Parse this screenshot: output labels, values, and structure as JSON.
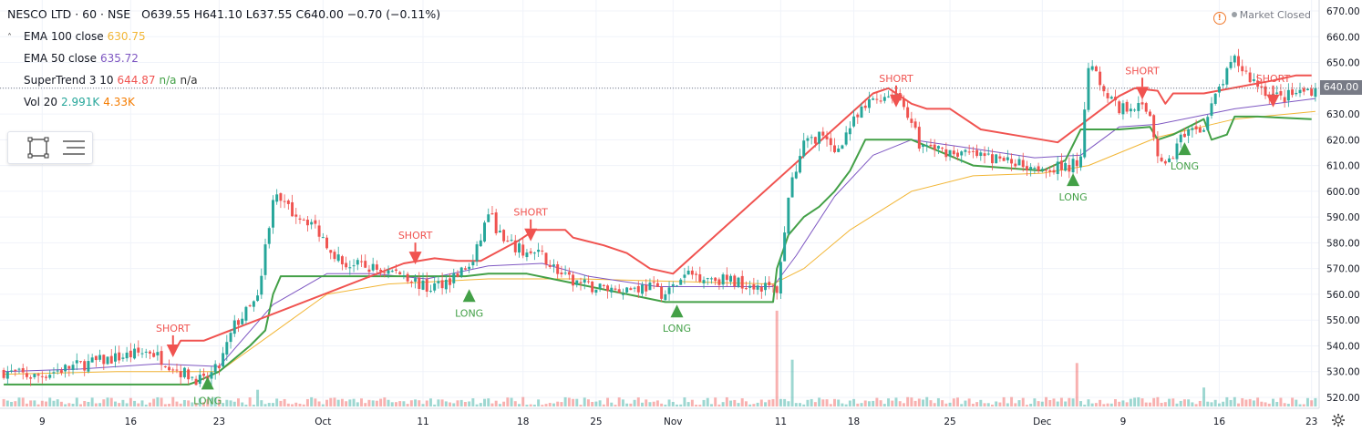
{
  "header": {
    "title": "NESCO LTD · 60 · NSE",
    "ohlc": "O639.55  H641.10  L637.55  C640.00  −0.70 (−0.11%)",
    "indicators": [
      {
        "name": "EMA 100 close",
        "value": "630.75",
        "color": "#f2b636"
      },
      {
        "name": "EMA 50 close",
        "value": "635.72",
        "color": "#7e57c2"
      },
      {
        "name": "SuperTrend 3 10",
        "value": "644.87",
        "value2": "n/a",
        "value3": "n/a",
        "color": "#f05350"
      },
      {
        "name": "Vol 20",
        "value": "2.991K",
        "value2": "4.33K",
        "color": "#26a69a"
      }
    ]
  },
  "status": {
    "market": "Market Closed",
    "alert_icon": "!"
  },
  "last_price": "640.00",
  "toolbar_icons": [
    "select-rectangle-icon",
    "object-tree-icon"
  ],
  "colors": {
    "up": "#26a69a",
    "down": "#ef5350",
    "long": "#43a047",
    "short": "#f05350",
    "ema100": "#f2b636",
    "ema50": "#7e57c2",
    "grid": "#f0f3fa"
  },
  "chart_data": {
    "type": "candlestick",
    "symbol": "NESCO LTD",
    "interval": "60",
    "exchange": "NSE",
    "y_ticks": [
      "670.00",
      "660.00",
      "650.00",
      "640.00",
      "630.00",
      "620.00",
      "610.00",
      "600.00",
      "590.00",
      "580.00",
      "570.00",
      "560.00",
      "550.00",
      "540.00",
      "530.00",
      "520.00"
    ],
    "ylim": [
      517,
      673
    ],
    "x_ticks": [
      {
        "label": "9",
        "bar": 10
      },
      {
        "label": "16",
        "bar": 33
      },
      {
        "label": "23",
        "bar": 56
      },
      {
        "label": "Oct",
        "bar": 83
      },
      {
        "label": "11",
        "bar": 109
      },
      {
        "label": "18",
        "bar": 135
      },
      {
        "label": "25",
        "bar": 154
      },
      {
        "label": "Nov",
        "bar": 174
      },
      {
        "label": "11",
        "bar": 202
      },
      {
        "label": "18",
        "bar": 221
      },
      {
        "label": "25",
        "bar": 246
      },
      {
        "label": "Dec",
        "bar": 270
      },
      {
        "label": "9",
        "bar": 291
      },
      {
        "label": "16",
        "bar": 316
      },
      {
        "label": "23",
        "bar": 340
      }
    ],
    "num_bars": 342,
    "price_path": [
      [
        0,
        530
      ],
      [
        8,
        528
      ],
      [
        18,
        532
      ],
      [
        28,
        535
      ],
      [
        38,
        538
      ],
      [
        46,
        530
      ],
      [
        52,
        526
      ],
      [
        56,
        532
      ],
      [
        60,
        548
      ],
      [
        66,
        558
      ],
      [
        70,
        598
      ],
      [
        74,
        593
      ],
      [
        80,
        588
      ],
      [
        84,
        580
      ],
      [
        88,
        572
      ],
      [
        96,
        570
      ],
      [
        104,
        568
      ],
      [
        110,
        562
      ],
      [
        116,
        566
      ],
      [
        122,
        572
      ],
      [
        126,
        592
      ],
      [
        130,
        580
      ],
      [
        136,
        576
      ],
      [
        140,
        575
      ],
      [
        146,
        566
      ],
      [
        152,
        563
      ],
      [
        160,
        562
      ],
      [
        168,
        563
      ],
      [
        172,
        560
      ],
      [
        178,
        568
      ],
      [
        186,
        566
      ],
      [
        194,
        564
      ],
      [
        201,
        562
      ],
      [
        204,
        598
      ],
      [
        208,
        618
      ],
      [
        212,
        622
      ],
      [
        216,
        615
      ],
      [
        220,
        625
      ],
      [
        226,
        636
      ],
      [
        232,
        638
      ],
      [
        236,
        628
      ],
      [
        238,
        618
      ],
      [
        244,
        616
      ],
      [
        252,
        614
      ],
      [
        260,
        612
      ],
      [
        268,
        610
      ],
      [
        276,
        609
      ],
      [
        280,
        612
      ],
      [
        282,
        650
      ],
      [
        286,
        640
      ],
      [
        290,
        632
      ],
      [
        294,
        634
      ],
      [
        298,
        630
      ],
      [
        300,
        615
      ],
      [
        302,
        610
      ],
      [
        306,
        620
      ],
      [
        312,
        625
      ],
      [
        316,
        640
      ],
      [
        320,
        651
      ],
      [
        324,
        644
      ],
      [
        328,
        639
      ],
      [
        332,
        636
      ],
      [
        336,
        638
      ],
      [
        341,
        640
      ]
    ],
    "ema50_path": [
      [
        0,
        530
      ],
      [
        20,
        531
      ],
      [
        40,
        533
      ],
      [
        56,
        532
      ],
      [
        70,
        556
      ],
      [
        84,
        568
      ],
      [
        96,
        568
      ],
      [
        110,
        566
      ],
      [
        126,
        571
      ],
      [
        140,
        572
      ],
      [
        152,
        567
      ],
      [
        170,
        563
      ],
      [
        200,
        563
      ],
      [
        206,
        575
      ],
      [
        216,
        598
      ],
      [
        226,
        614
      ],
      [
        236,
        620
      ],
      [
        250,
        617
      ],
      [
        268,
        613
      ],
      [
        280,
        614
      ],
      [
        290,
        625
      ],
      [
        300,
        626
      ],
      [
        320,
        632
      ],
      [
        341,
        636
      ]
    ],
    "ema100_path": [
      [
        0,
        529
      ],
      [
        30,
        530
      ],
      [
        56,
        530
      ],
      [
        70,
        545
      ],
      [
        84,
        560
      ],
      [
        100,
        564
      ],
      [
        126,
        566
      ],
      [
        150,
        566
      ],
      [
        200,
        564
      ],
      [
        208,
        570
      ],
      [
        220,
        585
      ],
      [
        236,
        600
      ],
      [
        252,
        606
      ],
      [
        270,
        607
      ],
      [
        282,
        610
      ],
      [
        300,
        621
      ],
      [
        320,
        628
      ],
      [
        341,
        631
      ]
    ],
    "supertrend_long": [
      [
        0,
        525
      ],
      [
        20,
        525
      ],
      [
        48,
        525
      ],
      [
        50,
        526
      ],
      [
        56,
        530
      ],
      [
        64,
        540
      ],
      [
        68,
        546
      ],
      [
        70,
        560
      ],
      [
        72,
        567
      ],
      [
        80,
        567
      ],
      [
        102,
        567
      ],
      [
        110,
        567
      ],
      [
        120,
        567
      ],
      [
        126,
        568
      ],
      [
        136,
        568
      ],
      [
        172,
        557
      ],
      [
        200,
        557
      ],
      [
        201,
        570
      ],
      [
        204,
        583
      ],
      [
        208,
        590
      ],
      [
        212,
        594
      ],
      [
        216,
        600
      ],
      [
        220,
        608
      ],
      [
        224,
        620
      ],
      [
        236,
        620
      ],
      [
        252,
        610
      ],
      [
        270,
        608
      ],
      [
        276,
        612
      ],
      [
        280,
        624
      ],
      [
        290,
        624
      ],
      [
        298,
        625
      ],
      [
        300,
        620
      ],
      [
        304,
        622
      ],
      [
        308,
        625
      ],
      [
        312,
        628
      ],
      [
        314,
        620
      ],
      [
        318,
        622
      ],
      [
        320,
        629
      ],
      [
        326,
        629
      ],
      [
        340,
        628
      ]
    ],
    "supertrend_short": [
      [
        44,
        537
      ],
      [
        46,
        542
      ],
      [
        52,
        542
      ],
      [
        104,
        572
      ],
      [
        112,
        574
      ],
      [
        118,
        573
      ],
      [
        124,
        573
      ],
      [
        134,
        581
      ],
      [
        138,
        585
      ],
      [
        146,
        585
      ],
      [
        148,
        582
      ],
      [
        156,
        579
      ],
      [
        162,
        576
      ],
      [
        168,
        570
      ],
      [
        174,
        568
      ],
      [
        226,
        638
      ],
      [
        230,
        640
      ],
      [
        232,
        638
      ],
      [
        236,
        634
      ],
      [
        240,
        632
      ],
      [
        246,
        632
      ],
      [
        250,
        628
      ],
      [
        254,
        624
      ],
      [
        262,
        622
      ],
      [
        270,
        620
      ],
      [
        274,
        619
      ],
      [
        290,
        637
      ],
      [
        294,
        640
      ],
      [
        300,
        639
      ],
      [
        302,
        634
      ],
      [
        304,
        638
      ],
      [
        312,
        638
      ],
      [
        330,
        643
      ],
      [
        336,
        645
      ],
      [
        340,
        645
      ]
    ],
    "signals": [
      {
        "type": "SHORT",
        "bar": 44,
        "price": 537
      },
      {
        "type": "LONG",
        "bar": 53,
        "price": 528
      },
      {
        "type": "SHORT",
        "bar": 107,
        "price": 573
      },
      {
        "type": "LONG",
        "bar": 121,
        "price": 562
      },
      {
        "type": "SHORT",
        "bar": 137,
        "price": 582
      },
      {
        "type": "LONG",
        "bar": 175,
        "price": 556
      },
      {
        "type": "SHORT",
        "bar": 232,
        "price": 634
      },
      {
        "type": "LONG",
        "bar": 278,
        "price": 607
      },
      {
        "type": "SHORT",
        "bar": 296,
        "price": 637
      },
      {
        "type": "LONG",
        "bar": 307,
        "price": 619
      },
      {
        "type": "SHORT",
        "bar": 330,
        "price": 634
      }
    ],
    "volume_spikes": [
      {
        "bar": 201,
        "volume": 8.6
      },
      {
        "bar": 205,
        "volume": 4.2
      },
      {
        "bar": 279,
        "volume": 3.9
      },
      {
        "bar": 312,
        "volume": 1.7
      },
      {
        "bar": 66,
        "volume": 1.5
      }
    ],
    "volume_baseline": 0.5,
    "volume_max": 9
  }
}
